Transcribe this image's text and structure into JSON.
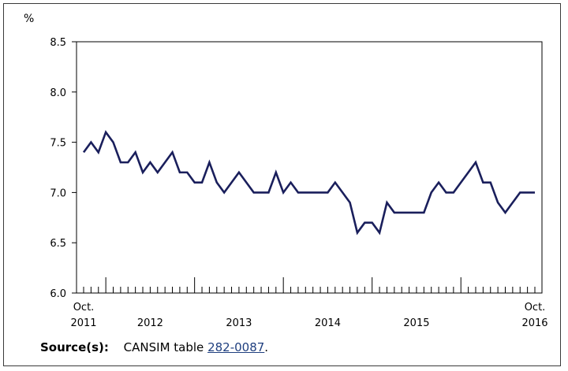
{
  "chart_data": {
    "type": "line",
    "ylabel": "%",
    "ylim": [
      6.0,
      8.5
    ],
    "yticks": [
      6.0,
      6.5,
      7.0,
      7.5,
      8.0,
      8.5
    ],
    "ytick_labels": [
      "6.0",
      "6.5",
      "7.0",
      "7.5",
      "8.0",
      "8.5"
    ],
    "x_labels": [
      {
        "line1": "Oct.",
        "line2": "2011"
      },
      {
        "line1": "",
        "line2": "2012"
      },
      {
        "line1": "",
        "line2": "2013"
      },
      {
        "line1": "",
        "line2": "2014"
      },
      {
        "line1": "",
        "line2": "2015"
      },
      {
        "line1": "Oct.",
        "line2": "2016"
      }
    ],
    "grid": false,
    "legend": "none",
    "line_color": "#1a1f5c",
    "series": [
      {
        "values": [
          7.4,
          7.5,
          7.4,
          7.6,
          7.5,
          7.3,
          7.3,
          7.4,
          7.2,
          7.3,
          7.2,
          7.3,
          7.4,
          7.2,
          7.2,
          7.1,
          7.1,
          7.3,
          7.1,
          7.0,
          7.1,
          7.2,
          7.1,
          7.0,
          7.0,
          7.0,
          7.2,
          7.0,
          7.1,
          7.0,
          7.0,
          7.0,
          7.0,
          7.0,
          7.1,
          7.0,
          6.9,
          6.6,
          6.7,
          6.7,
          6.6,
          6.9,
          6.8,
          6.8,
          6.8,
          6.8,
          6.8,
          7.0,
          7.1,
          7.0,
          7.0,
          7.1,
          7.2,
          7.3,
          7.1,
          7.1,
          6.9,
          6.8,
          6.9,
          7.0,
          7.0,
          7.0
        ]
      }
    ]
  },
  "source": {
    "label": "Source(s):",
    "prefix": "CANSIM table",
    "link_text": "282-0087",
    "suffix": "."
  }
}
